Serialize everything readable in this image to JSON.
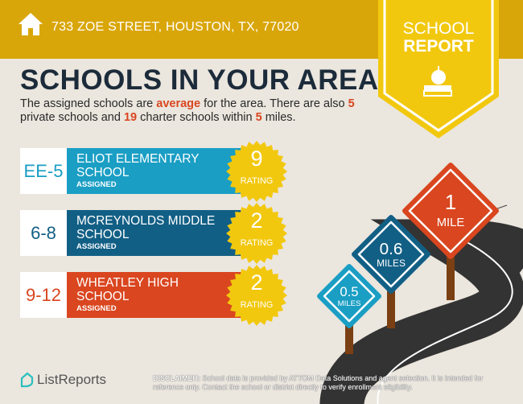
{
  "header": {
    "address": "733 ZOE STREET, HOUSTON, TX, 77020",
    "icon": "home-icon"
  },
  "badge": {
    "line1": "SCHOOL",
    "line2": "REPORT",
    "icon": "apple-on-book-icon"
  },
  "title": "SCHOOLS IN YOUR AREA",
  "description": {
    "p1": "The assigned schools are ",
    "quality": "average",
    "p2": " for the area. There are also ",
    "private_count": "5",
    "p3": " private schools and ",
    "charter_count": "19",
    "p4": " charter schools within ",
    "radius": "5",
    "p5": " miles."
  },
  "schools": [
    {
      "grades": "EE-5",
      "name1": "ELIOT ELEMENTARY",
      "name2": "SCHOOL",
      "status": "ASSIGNED",
      "rating": "9",
      "rating_label": "RATING",
      "color": "#1a9ec4"
    },
    {
      "grades": "6-8",
      "name1": "MCREYNOLDS MIDDLE",
      "name2": "SCHOOL",
      "status": "ASSIGNED",
      "rating": "2",
      "rating_label": "RATING",
      "color": "#125f85"
    },
    {
      "grades": "9-12",
      "name1": "WHEATLEY HIGH",
      "name2": "SCHOOL",
      "status": "ASSIGNED",
      "rating": "2",
      "rating_label": "RATING",
      "color": "#d9461f"
    }
  ],
  "signs": [
    {
      "value": "0.5",
      "unit": "MILES",
      "color": "#1a9ec4"
    },
    {
      "value": "0.6",
      "unit": "MILES",
      "color": "#125f85"
    },
    {
      "value": "1",
      "unit": "MILE",
      "color": "#d9461f"
    }
  ],
  "footer": {
    "brand": "ListReports",
    "disclaimer_label": "DISCLAIMER:",
    "disclaimer": " School data is provided by ATTOM Data Solutions and agent selection. It is intended for reference only. Contact the school or district directly to verify enrollment eligibility."
  },
  "colors": {
    "header": "#d9a60a",
    "badge": "#f2c80f",
    "background": "#ebe6de",
    "title": "#1c2b3a",
    "highlight": "#d9461f"
  }
}
